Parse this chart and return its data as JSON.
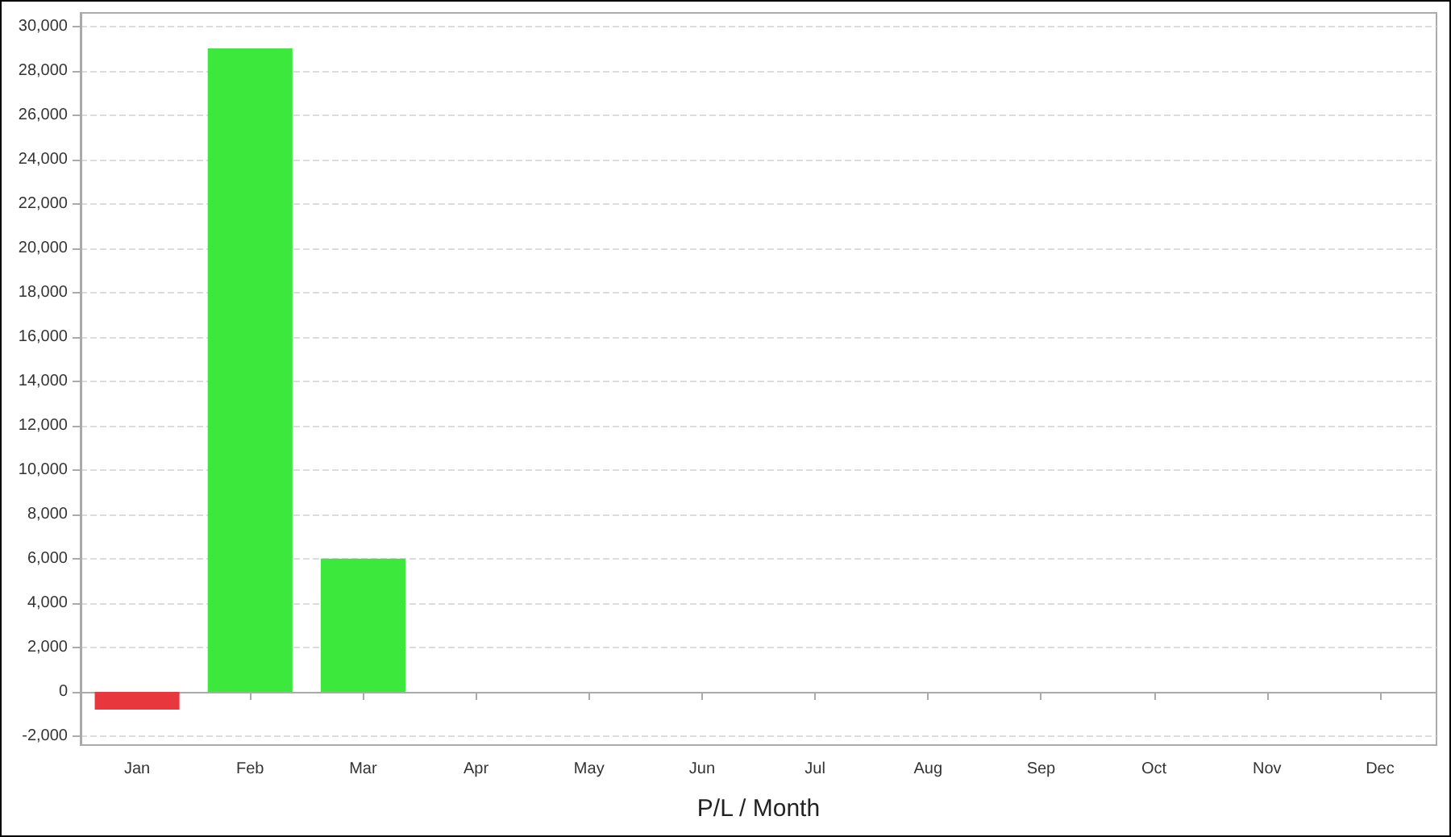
{
  "chart_data": {
    "type": "bar",
    "xlabel": "P/L / Month",
    "categories": [
      "Jan",
      "Feb",
      "Mar",
      "Apr",
      "May",
      "Jun",
      "Jul",
      "Aug",
      "Sep",
      "Oct",
      "Nov",
      "Dec"
    ],
    "values": [
      -800,
      29000,
      6000,
      null,
      null,
      null,
      null,
      null,
      null,
      null,
      null,
      null
    ],
    "colors": [
      "#e8383d",
      "#3de83d",
      "#3de83d",
      "#3de83d",
      "#3de83d",
      "#3de83d",
      "#3de83d",
      "#3de83d",
      "#3de83d",
      "#3de83d",
      "#3de83d",
      "#3de83d"
    ],
    "ylim": [
      -2400,
      30600
    ],
    "yticks": [
      {
        "value": -2000,
        "label": "-2,000"
      },
      0,
      {
        "value": 2000,
        "label": "2,000"
      },
      {
        "value": 4000,
        "label": "4,000"
      },
      {
        "value": 6000,
        "label": "6,000"
      },
      {
        "value": 8000,
        "label": "8,000"
      },
      {
        "value": 10000,
        "label": "10,000"
      },
      {
        "value": 12000,
        "label": "12,000"
      },
      {
        "value": 14000,
        "label": "14,000"
      },
      {
        "value": 16000,
        "label": "16,000"
      },
      {
        "value": 18000,
        "label": "18,000"
      },
      {
        "value": 20000,
        "label": "20,000"
      },
      {
        "value": 22000,
        "label": "22,000"
      },
      {
        "value": 24000,
        "label": "24,000"
      },
      {
        "value": 26000,
        "label": "26,000"
      },
      {
        "value": 28000,
        "label": "28,000"
      },
      {
        "value": 30000,
        "label": "30,000"
      }
    ],
    "grid": "y"
  }
}
